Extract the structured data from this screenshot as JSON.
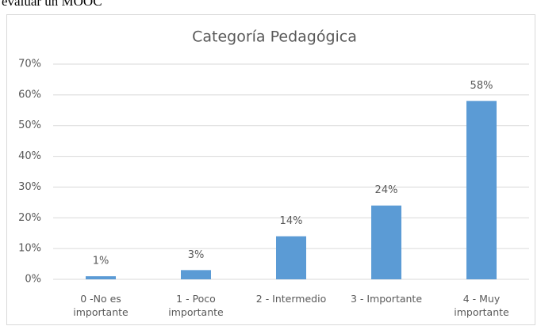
{
  "caption": "evaluar un MOOC",
  "chart_data": {
    "type": "bar",
    "title": "Categoría Pedagógica",
    "categories": [
      "0 -No es importante",
      "1 - Poco importante",
      "2 - Intermedio",
      "3 - Importante",
      "4 - Muy importante"
    ],
    "values": [
      1,
      3,
      14,
      24,
      58
    ],
    "value_labels": [
      "1%",
      "3%",
      "14%",
      "24%",
      "58%"
    ],
    "color": "#5b9bd5",
    "ylim": [
      0,
      70
    ],
    "yticks": [
      {
        "value": 0,
        "label": "0%"
      },
      {
        "value": 10,
        "label": "10%"
      },
      {
        "value": 20,
        "label": "20%"
      },
      {
        "value": 30,
        "label": "30%"
      },
      {
        "value": 40,
        "label": "40%"
      },
      {
        "value": 50,
        "label": "50%"
      },
      {
        "value": 60,
        "label": "60%"
      },
      {
        "value": 70,
        "label": "70%"
      }
    ],
    "grid": true
  }
}
